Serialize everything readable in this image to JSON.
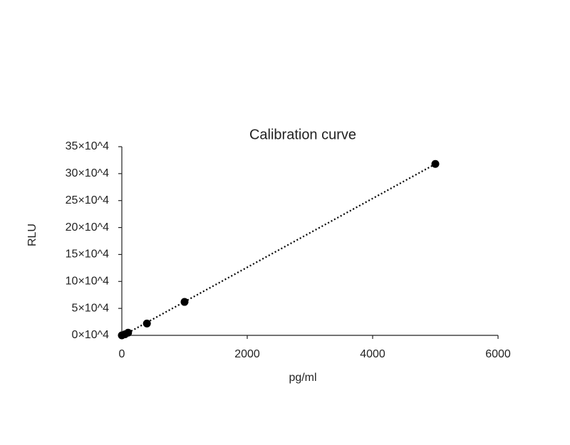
{
  "chart_data": {
    "type": "scatter",
    "title": "Calibration curve",
    "x_label": "pg/ml",
    "y_label": "RLU",
    "x": [
      0,
      50,
      100,
      400,
      1000,
      5000
    ],
    "values": [
      0,
      2000,
      5000,
      22000,
      62000,
      318000
    ],
    "color": "#000000",
    "trendline": "linear",
    "xlim": [
      0,
      6000
    ],
    "xticks": [
      0,
      2000,
      4000,
      6000
    ],
    "ylim": [
      0,
      350000
    ],
    "yticks": [
      {
        "value": 0,
        "label": "0×10^4"
      },
      {
        "value": 50000,
        "label": "5×10^4"
      },
      {
        "value": 100000,
        "label": "10×10^4"
      },
      {
        "value": 150000,
        "label": "15×10^4"
      },
      {
        "value": 200000,
        "label": "20×10^4"
      },
      {
        "value": 250000,
        "label": "25×10^4"
      },
      {
        "value": 300000,
        "label": "30×10^4"
      },
      {
        "value": 350000,
        "label": "35×10^4"
      }
    ],
    "grid": false
  }
}
